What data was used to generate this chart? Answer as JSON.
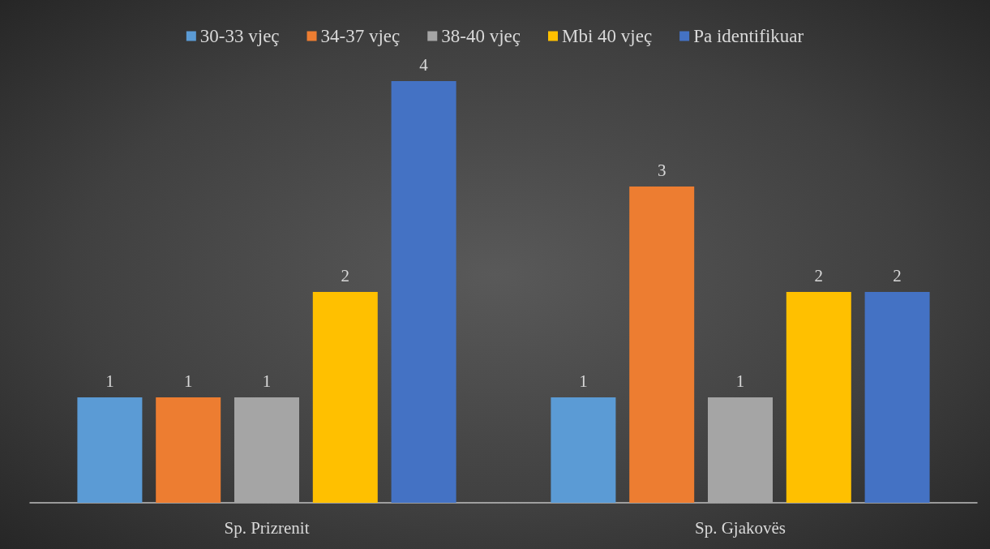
{
  "chart_data": {
    "type": "bar",
    "categories": [
      "Sp. Prizrenit",
      "Sp. Gjakovës"
    ],
    "series": [
      {
        "name": "30-33 vjeç",
        "color": "#5b9bd5",
        "values": [
          1,
          1
        ]
      },
      {
        "name": "34-37 vjeç",
        "color": "#ed7d31",
        "values": [
          1,
          3
        ]
      },
      {
        "name": "38-40 vjeç",
        "color": "#a5a5a5",
        "values": [
          1,
          1
        ]
      },
      {
        "name": "Mbi 40 vjeç",
        "color": "#ffc000",
        "values": [
          2,
          2
        ]
      },
      {
        "name": "Pa identifikuar",
        "color": "#4472c4",
        "values": [
          4,
          2
        ]
      }
    ],
    "data_labels": true,
    "legend": "top"
  }
}
